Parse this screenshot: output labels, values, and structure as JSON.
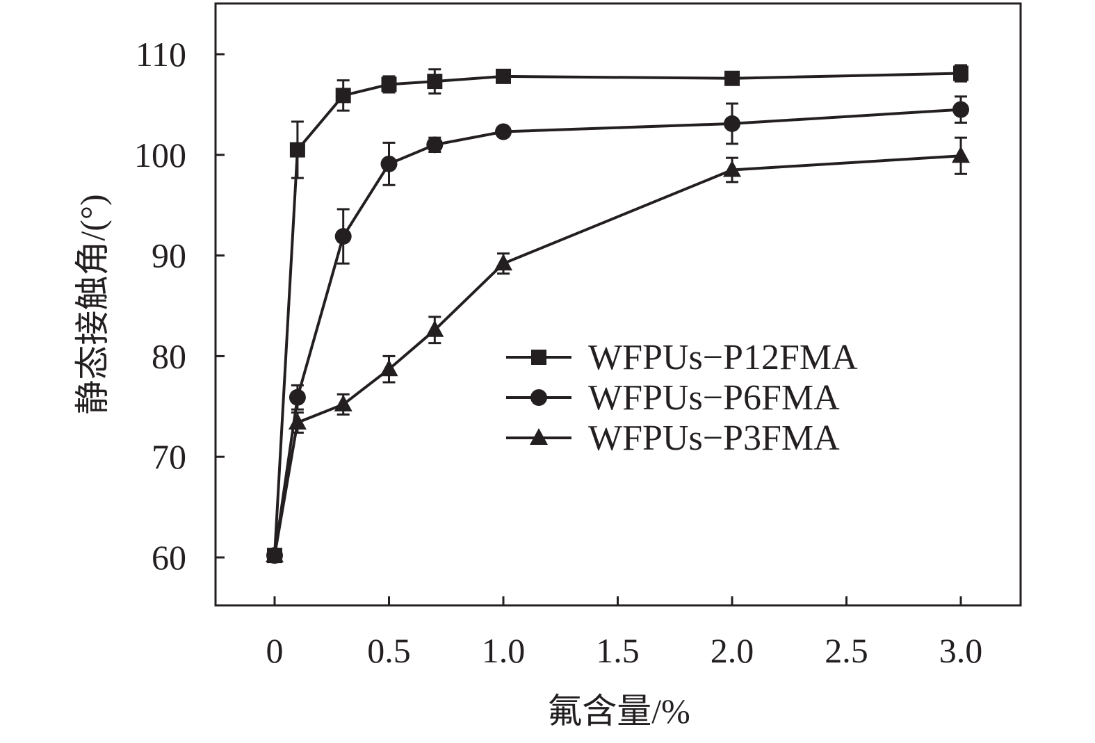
{
  "chart_data": {
    "type": "line",
    "title": "",
    "xlabel": "氟含量/%",
    "ylabel": "静态接触角/(°)",
    "x_ticks": [
      0,
      0.5,
      1.0,
      1.5,
      2.0,
      2.5,
      3.0
    ],
    "x_tick_labels": [
      "0",
      "0.5",
      "1.0",
      "1.5",
      "2.0",
      "2.5",
      "3.0"
    ],
    "y_ticks": [
      60,
      70,
      80,
      90,
      100,
      110
    ],
    "y_tick_labels": [
      "60",
      "70",
      "80",
      "90",
      "100",
      "110"
    ],
    "xlim": [
      -0.26,
      3.26
    ],
    "ylim": [
      55,
      115
    ],
    "grid": false,
    "legend_position": "center-right",
    "x": [
      0,
      0.1,
      0.3,
      0.5,
      0.7,
      1.0,
      2.0,
      3.0
    ],
    "series": [
      {
        "name": "WFPUs−P12FMA",
        "marker": "square",
        "values": [
          60.2,
          100.5,
          105.9,
          107.0,
          107.3,
          107.8,
          107.6,
          108.1
        ],
        "errors": [
          0.5,
          2.8,
          1.5,
          0.8,
          1.2,
          0.5,
          0.6,
          0.8
        ]
      },
      {
        "name": "WFPUs−P6FMA",
        "marker": "circle",
        "values": [
          60.2,
          75.9,
          91.9,
          99.1,
          101.0,
          102.3,
          103.1,
          104.5
        ],
        "errors": [
          0.5,
          1.2,
          2.7,
          2.1,
          0.7,
          0.4,
          2.0,
          1.3
        ]
      },
      {
        "name": "WFPUs−P3FMA",
        "marker": "triangle",
        "values": [
          60.2,
          73.4,
          75.2,
          78.7,
          82.6,
          89.2,
          98.5,
          99.9
        ],
        "errors": [
          0.5,
          1.0,
          1.0,
          1.3,
          1.3,
          1.0,
          1.2,
          1.8
        ]
      }
    ]
  },
  "style": {
    "line_color": "#231f20",
    "background": "#ffffff"
  }
}
